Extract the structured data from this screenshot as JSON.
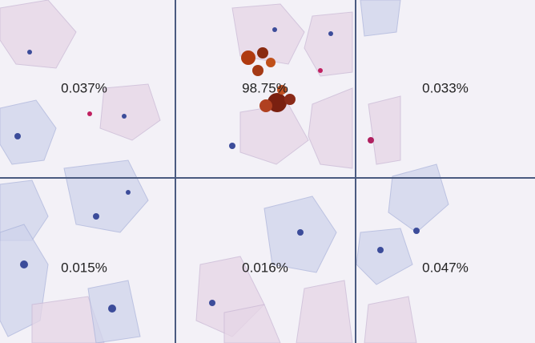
{
  "tiles": [
    {
      "label": "0.037%"
    },
    {
      "label": "98.75%"
    },
    {
      "label": "0.033%"
    },
    {
      "label": "0.015%"
    },
    {
      "label": "0.016%"
    },
    {
      "label": "0.047%"
    }
  ]
}
